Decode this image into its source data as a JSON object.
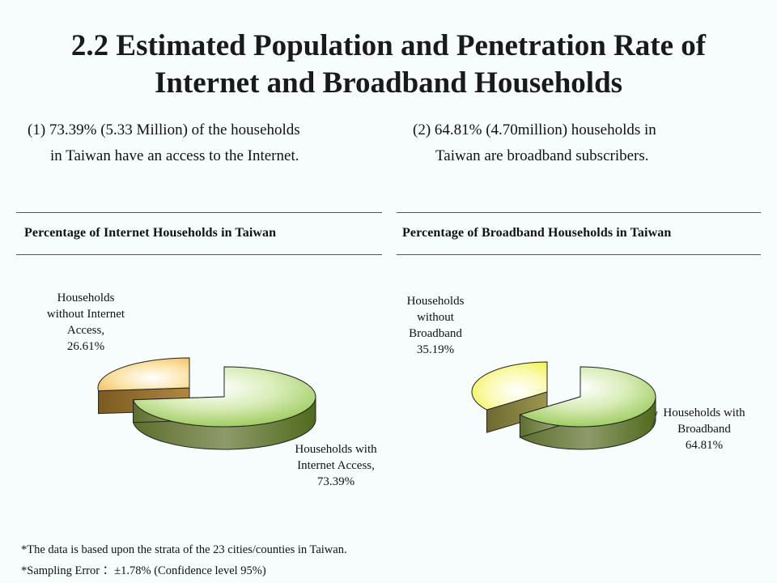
{
  "title": {
    "line1": "2.2 Estimated Population and Penetration Rate of",
    "line2": "Internet and Broadband Households"
  },
  "summary": {
    "left": {
      "line1": "(1) 73.39% (5.33 Million) of the households",
      "line2": "in Taiwan have an access to the Internet."
    },
    "right": {
      "line1": "(2) 64.81% (4.70million) households in",
      "line2": "Taiwan are broadband subscribers."
    }
  },
  "chart_data": [
    {
      "type": "pie",
      "title": "Percentage of Internet Households in Taiwan",
      "slices": [
        {
          "label": "Households with Internet Access,",
          "value": 73.39,
          "value_text": "73.39%",
          "color": "#8FC34A"
        },
        {
          "label": "Households without Internet Access,",
          "value": 26.61,
          "value_text": "26.61%",
          "color": "#F2C45E"
        }
      ],
      "exploded": true
    },
    {
      "type": "pie",
      "title": "Percentage of Broadband Households in Taiwan",
      "slices": [
        {
          "label": "Households with Broadband",
          "value": 64.81,
          "value_text": "64.81%",
          "color": "#8FC34A"
        },
        {
          "label": "Households without Broadband",
          "value": 35.19,
          "value_text": "35.19%",
          "color": "#F2F03A"
        }
      ],
      "exploded": true
    }
  ],
  "labels": {
    "chart1": {
      "minor": [
        "Households",
        "without Internet",
        "Access,",
        "26.61%"
      ],
      "major": [
        "Households with",
        "Internet Access,",
        "73.39%"
      ]
    },
    "chart2": {
      "minor": [
        "Households",
        "without",
        "Broadband",
        "35.19%"
      ],
      "major": [
        "Households with",
        "Broadband",
        "64.81%"
      ]
    }
  },
  "footnotes": {
    "line1": "*The data is based upon the strata of the 23 cities/counties in Taiwan.",
    "line2": "*Sampling Error ：±1.78% (Confidence level 95%)"
  }
}
